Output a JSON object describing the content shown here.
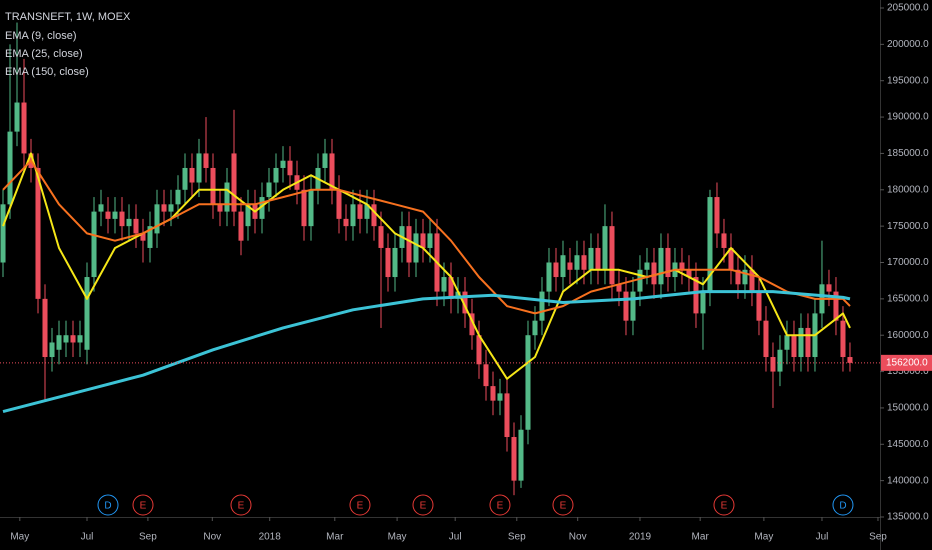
{
  "chart_data": {
    "type": "candlestick",
    "title": "TRANSNEFT, 1W, MOEX",
    "up_color": "#53b987",
    "down_color": "#eb4d5c",
    "open": [
      170000,
      178000,
      188000,
      192000,
      185000,
      183000,
      165000,
      157000,
      158000,
      159000,
      160000,
      159000,
      158000,
      168000,
      177000,
      177000,
      176000,
      177000,
      175000,
      176000,
      174000,
      172000,
      174000,
      178000,
      177000,
      178000,
      180000,
      183000,
      181000,
      185000,
      183000,
      178000,
      177000,
      185000,
      177000,
      175000,
      178000,
      176000,
      179000,
      181000,
      183000,
      184000,
      182000,
      180000,
      175000,
      180000,
      183000,
      185000,
      180000,
      176000,
      175000,
      178000,
      176000,
      178000,
      175000,
      172000,
      168000,
      172000,
      175000,
      170000,
      174000,
      172000,
      174000,
      166000,
      168000,
      165000,
      166000,
      163000,
      160000,
      156000,
      153000,
      151000,
      152000,
      146000,
      140000,
      147000,
      160000,
      162000,
      166000,
      170000,
      168000,
      170000,
      169000,
      171000,
      169000,
      172000,
      169000,
      175000,
      167000,
      166000,
      162000,
      166000,
      169000,
      170000,
      167000,
      172000,
      168000,
      170000,
      169000,
      168000,
      163000,
      166000,
      179000,
      174000,
      172000,
      169000,
      167000,
      169000,
      166000,
      162000,
      157000,
      155000,
      158000,
      160000,
      157000,
      161000,
      157000,
      163000,
      167000,
      166000,
      162000,
      157000
    ],
    "high": [
      180000,
      200000,
      203000,
      198000,
      187000,
      185000,
      167000,
      161000,
      162000,
      162000,
      162000,
      162000,
      170000,
      179000,
      180000,
      179000,
      179000,
      179000,
      178000,
      178000,
      176000,
      177000,
      180000,
      180000,
      180000,
      182000,
      185000,
      185000,
      187000,
      190000,
      185000,
      180000,
      183000,
      191000,
      179000,
      180000,
      180000,
      181000,
      183000,
      185000,
      186000,
      186000,
      184000,
      182000,
      182000,
      185000,
      187000,
      187000,
      182000,
      178000,
      180000,
      180000,
      180000,
      180000,
      177000,
      174000,
      174000,
      177000,
      177000,
      176000,
      176000,
      176000,
      176000,
      170000,
      170000,
      168000,
      168000,
      165000,
      162000,
      158000,
      155000,
      154000,
      154000,
      148000,
      149000,
      162000,
      164000,
      168000,
      172000,
      172000,
      173000,
      172000,
      173000,
      173000,
      174000,
      174000,
      178000,
      177000,
      169000,
      168000,
      168000,
      171000,
      172000,
      172000,
      174000,
      174000,
      172000,
      172000,
      171000,
      170000,
      168000,
      180000,
      181000,
      176000,
      174000,
      171000,
      171000,
      171000,
      168000,
      164000,
      159000,
      160000,
      162000,
      162000,
      163000,
      163000,
      165000,
      173000,
      169000,
      168000,
      164000,
      159000
    ],
    "low": [
      168000,
      176000,
      186000,
      183000,
      181000,
      163000,
      151000,
      155000,
      156000,
      157000,
      157000,
      157000,
      156000,
      166000,
      175000,
      174000,
      174000,
      173000,
      173000,
      172000,
      170000,
      170000,
      172000,
      175000,
      175000,
      176000,
      178000,
      179000,
      179000,
      181000,
      176000,
      175000,
      175000,
      175000,
      171000,
      173000,
      174000,
      174000,
      177000,
      179000,
      181000,
      180000,
      178000,
      173000,
      173000,
      178000,
      181000,
      178000,
      174000,
      173000,
      173000,
      174000,
      174000,
      173000,
      161000,
      166000,
      166000,
      170000,
      168000,
      168000,
      170000,
      170000,
      164000,
      164000,
      163000,
      163000,
      161000,
      158000,
      154000,
      151000,
      149000,
      149000,
      144000,
      138000,
      139000,
      145000,
      158000,
      160000,
      164000,
      166000,
      166000,
      167000,
      167000,
      167000,
      167000,
      167000,
      167000,
      165000,
      164000,
      160000,
      160000,
      164000,
      167000,
      165000,
      165000,
      166000,
      166000,
      167000,
      166000,
      161000,
      158000,
      164000,
      172000,
      170000,
      167000,
      165000,
      165000,
      164000,
      160000,
      155000,
      150000,
      153000,
      156000,
      155000,
      155000,
      155000,
      155000,
      161000,
      164000,
      160000,
      155000,
      155000
    ],
    "close": [
      178000,
      188000,
      192000,
      185000,
      183000,
      165000,
      157000,
      159000,
      160000,
      160000,
      159000,
      160000,
      168000,
      177000,
      178000,
      176000,
      177000,
      175000,
      176000,
      174000,
      173000,
      175000,
      178000,
      177000,
      178000,
      180000,
      183000,
      181000,
      185000,
      183000,
      178000,
      177000,
      181000,
      177000,
      173000,
      178000,
      176000,
      179000,
      181000,
      183000,
      184000,
      182000,
      180000,
      175000,
      180000,
      183000,
      185000,
      180000,
      176000,
      175000,
      178000,
      176000,
      178000,
      175000,
      172000,
      168000,
      172000,
      175000,
      170000,
      174000,
      172000,
      174000,
      166000,
      168000,
      165000,
      166000,
      163000,
      160000,
      156000,
      153000,
      151000,
      152000,
      146000,
      140000,
      147000,
      160000,
      162000,
      166000,
      170000,
      168000,
      171000,
      169000,
      171000,
      169000,
      172000,
      169000,
      175000,
      167000,
      166000,
      162000,
      166000,
      169000,
      170000,
      167000,
      172000,
      168000,
      170000,
      169000,
      168000,
      163000,
      166000,
      179000,
      174000,
      172000,
      169000,
      167000,
      169000,
      166000,
      162000,
      157000,
      155000,
      158000,
      160000,
      157000,
      161000,
      157000,
      163000,
      167000,
      166000,
      162000,
      157000,
      156200
    ],
    "series": [
      {
        "name": "EMA (9, close)",
        "color": "#f5e617",
        "x": [
          0,
          4,
          8,
          12,
          16,
          20,
          24,
          28,
          32,
          36,
          40,
          44,
          48,
          52,
          56,
          60,
          64,
          68,
          72,
          76,
          80,
          84,
          88,
          92,
          96,
          100,
          104,
          108,
          112,
          116,
          120,
          121
        ],
        "values": [
          175000,
          185000,
          172000,
          165000,
          172000,
          174000,
          176000,
          180000,
          180000,
          177000,
          180000,
          182000,
          180000,
          178000,
          174000,
          172000,
          168000,
          160000,
          154000,
          157000,
          166000,
          169000,
          169000,
          168000,
          169000,
          167000,
          172000,
          168000,
          160000,
          160000,
          163000,
          161000
        ]
      },
      {
        "name": "EMA (25, close)",
        "color": "#f7711f",
        "x": [
          0,
          4,
          8,
          12,
          16,
          20,
          24,
          28,
          32,
          36,
          40,
          44,
          48,
          52,
          56,
          60,
          64,
          68,
          72,
          76,
          80,
          84,
          88,
          92,
          96,
          100,
          104,
          108,
          112,
          116,
          120,
          121
        ],
        "values": [
          180000,
          184000,
          178000,
          174000,
          173000,
          174000,
          176000,
          178000,
          178000,
          178000,
          179000,
          180000,
          180000,
          179000,
          178000,
          177000,
          173000,
          168000,
          164000,
          163000,
          164000,
          166000,
          167000,
          168000,
          169000,
          169000,
          169000,
          168000,
          166000,
          165000,
          165000,
          164000
        ]
      },
      {
        "name": "EMA (150, close)",
        "color": "#3cc3d6",
        "x": [
          0,
          10,
          20,
          30,
          40,
          50,
          60,
          70,
          80,
          90,
          100,
          110,
          120,
          121
        ],
        "values": [
          149500,
          152000,
          154500,
          158000,
          161000,
          163500,
          165000,
          165500,
          164500,
          165000,
          166000,
          166000,
          165200,
          165000
        ]
      }
    ],
    "xlim": [
      -0.43,
      125.29
    ],
    "xticks": [
      {
        "value": 2.4,
        "label": "May"
      },
      {
        "value": 12,
        "label": "Jul"
      },
      {
        "value": 20.7,
        "label": "Sep"
      },
      {
        "value": 29.9,
        "label": "Nov"
      },
      {
        "value": 38.1,
        "label": "2018"
      },
      {
        "value": 47.4,
        "label": "Mar"
      },
      {
        "value": 56.3,
        "label": "May"
      },
      {
        "value": 64.6,
        "label": "Jul"
      },
      {
        "value": 73.4,
        "label": "Sep"
      },
      {
        "value": 82.1,
        "label": "Nov"
      },
      {
        "value": 91,
        "label": "2019"
      },
      {
        "value": 99.6,
        "label": "Mar"
      },
      {
        "value": 108.7,
        "label": "May"
      },
      {
        "value": 117,
        "label": "Jul"
      },
      {
        "value": 125,
        "label": "Sep"
      }
    ],
    "ylim": [
      135000,
      206100
    ],
    "yticks": [
      {
        "value": 135000,
        "label": "135000.0"
      },
      {
        "value": 140000,
        "label": "140000.0"
      },
      {
        "value": 145000,
        "label": "145000.0"
      },
      {
        "value": 150000,
        "label": "150000.0"
      },
      {
        "value": 155000,
        "label": "155000.0"
      },
      {
        "value": 160000,
        "label": "160000.0"
      },
      {
        "value": 165000,
        "label": "165000.0"
      },
      {
        "value": 170000,
        "label": "170000.0"
      },
      {
        "value": 175000,
        "label": "175000.0"
      },
      {
        "value": 180000,
        "label": "180000.0"
      },
      {
        "value": 185000,
        "label": "185000.0"
      },
      {
        "value": 190000,
        "label": "190000.0"
      },
      {
        "value": 195000,
        "label": "195000.0"
      },
      {
        "value": 200000,
        "label": "200000.0"
      },
      {
        "value": 205000,
        "label": "205000.0"
      }
    ],
    "price_line": {
      "value": 156200,
      "label": "156200.0",
      "color": "#eb4d5c"
    },
    "events": [
      {
        "label": "D",
        "x": 15,
        "color": "#2196f3"
      },
      {
        "label": "E",
        "x": 20,
        "color": "#e53935"
      },
      {
        "label": "E",
        "x": 34,
        "color": "#e53935"
      },
      {
        "label": "E",
        "x": 51,
        "color": "#e53935"
      },
      {
        "label": "E",
        "x": 60,
        "color": "#e53935"
      },
      {
        "label": "E",
        "x": 71,
        "color": "#e53935"
      },
      {
        "label": "E",
        "x": 80,
        "color": "#e53935"
      },
      {
        "label": "E",
        "x": 103,
        "color": "#e53935"
      },
      {
        "label": "D",
        "x": 120,
        "color": "#2196f3"
      }
    ]
  }
}
